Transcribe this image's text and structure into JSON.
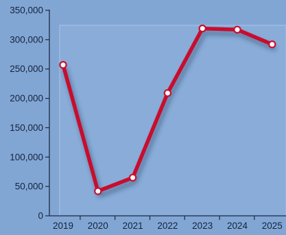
{
  "chart_data": {
    "type": "line",
    "title": "",
    "xlabel": "",
    "ylabel": "",
    "categories": [
      "2019",
      "2020",
      "2021",
      "2022",
      "2023",
      "2024",
      "2025"
    ],
    "series": [
      {
        "values": [
          257000,
          42000,
          65000,
          209000,
          319000,
          317000,
          292000
        ]
      }
    ],
    "ylim": [
      0,
      350000
    ],
    "yticks": [
      0,
      50000,
      100000,
      150000,
      200000,
      250000,
      300000,
      350000
    ],
    "ytick_labels": [
      "0",
      "50,000",
      "100,000",
      "150,000",
      "200,000",
      "250,000",
      "300,000",
      "350,000"
    ],
    "grid": false,
    "legend": "none",
    "colors": {
      "background": "#82a6d4",
      "line": "#c8102e",
      "marker_fill": "#ffffff",
      "axis": "#1c2a44",
      "text": "#14233d"
    }
  }
}
